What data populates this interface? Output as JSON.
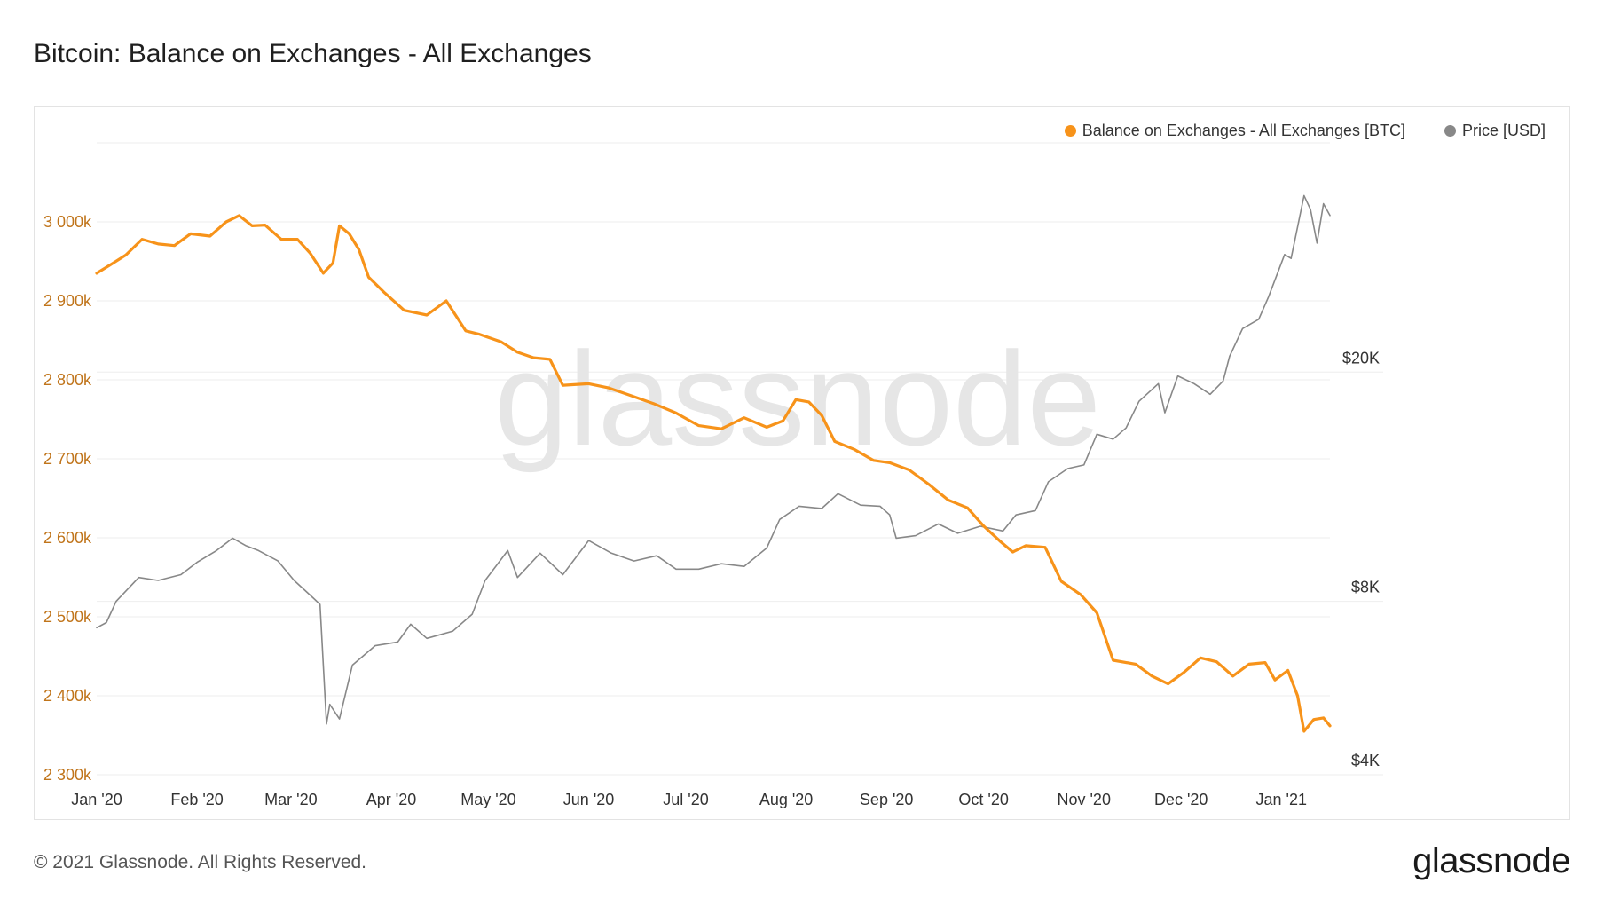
{
  "page": {
    "title": "Bitcoin: Balance on Exchanges - All Exchanges",
    "footer": "© 2021 Glassnode. All Rights Reserved.",
    "logo": "glassnode",
    "watermark": "glassnode"
  },
  "colors": {
    "balance": "#f7931a",
    "price": "#888888",
    "left_axis_text": "#c0741a",
    "grid": "#eeeeee"
  },
  "chart_data": {
    "type": "line",
    "title": "Bitcoin: Balance on Exchanges - All Exchanges",
    "legend_position": "top-right",
    "grid": true,
    "x_range": [
      "2020-01-01",
      "2021-01-16"
    ],
    "x_ticks": [
      {
        "date": "2020-01-01",
        "label": "Jan '20"
      },
      {
        "date": "2020-02-01",
        "label": "Feb '20"
      },
      {
        "date": "2020-03-01",
        "label": "Mar '20"
      },
      {
        "date": "2020-04-01",
        "label": "Apr '20"
      },
      {
        "date": "2020-05-01",
        "label": "May '20"
      },
      {
        "date": "2020-06-01",
        "label": "Jun '20"
      },
      {
        "date": "2020-07-01",
        "label": "Jul '20"
      },
      {
        "date": "2020-08-01",
        "label": "Aug '20"
      },
      {
        "date": "2020-09-01",
        "label": "Sep '20"
      },
      {
        "date": "2020-10-01",
        "label": "Oct '20"
      },
      {
        "date": "2020-11-01",
        "label": "Nov '20"
      },
      {
        "date": "2020-12-01",
        "label": "Dec '20"
      },
      {
        "date": "2021-01-01",
        "label": "Jan '21"
      }
    ],
    "y_left": {
      "scale": "linear",
      "range": [
        2300000,
        3100000
      ],
      "ticks": [
        {
          "value": 2300000,
          "label": "2 300k"
        },
        {
          "value": 2400000,
          "label": "2 400k"
        },
        {
          "value": 2500000,
          "label": "2 500k"
        },
        {
          "value": 2600000,
          "label": "2 600k"
        },
        {
          "value": 2700000,
          "label": "2 700k"
        },
        {
          "value": 2800000,
          "label": "2 800k"
        },
        {
          "value": 2900000,
          "label": "2 900k"
        },
        {
          "value": 3000000,
          "label": "3 000k"
        }
      ]
    },
    "y_right": {
      "scale": "log",
      "range": [
        4000,
        50000
      ],
      "ticks": [
        {
          "value": 4000,
          "label": "$4K"
        },
        {
          "value": 8000,
          "label": "$8K"
        },
        {
          "value": 20000,
          "label": "$20K"
        }
      ]
    },
    "series": [
      {
        "name": "Balance on Exchanges - All Exchanges [BTC]",
        "axis": "left",
        "points": [
          [
            "2020-01-01",
            2935000
          ],
          [
            "2020-01-05",
            2945000
          ],
          [
            "2020-01-10",
            2958000
          ],
          [
            "2020-01-15",
            2978000
          ],
          [
            "2020-01-20",
            2972000
          ],
          [
            "2020-01-25",
            2970000
          ],
          [
            "2020-01-30",
            2985000
          ],
          [
            "2020-02-05",
            2982000
          ],
          [
            "2020-02-10",
            3000000
          ],
          [
            "2020-02-14",
            3008000
          ],
          [
            "2020-02-18",
            2995000
          ],
          [
            "2020-02-22",
            2996000
          ],
          [
            "2020-02-27",
            2978000
          ],
          [
            "2020-03-03",
            2978000
          ],
          [
            "2020-03-07",
            2960000
          ],
          [
            "2020-03-11",
            2935000
          ],
          [
            "2020-03-14",
            2948000
          ],
          [
            "2020-03-16",
            2995000
          ],
          [
            "2020-03-19",
            2985000
          ],
          [
            "2020-03-22",
            2965000
          ],
          [
            "2020-03-25",
            2930000
          ],
          [
            "2020-03-30",
            2910000
          ],
          [
            "2020-04-05",
            2888000
          ],
          [
            "2020-04-12",
            2882000
          ],
          [
            "2020-04-18",
            2900000
          ],
          [
            "2020-04-24",
            2862000
          ],
          [
            "2020-04-28",
            2858000
          ],
          [
            "2020-05-05",
            2848000
          ],
          [
            "2020-05-10",
            2835000
          ],
          [
            "2020-05-15",
            2828000
          ],
          [
            "2020-05-20",
            2826000
          ],
          [
            "2020-05-24",
            2793000
          ],
          [
            "2020-06-01",
            2795000
          ],
          [
            "2020-06-07",
            2790000
          ],
          [
            "2020-06-14",
            2780000
          ],
          [
            "2020-06-21",
            2770000
          ],
          [
            "2020-06-28",
            2758000
          ],
          [
            "2020-07-05",
            2742000
          ],
          [
            "2020-07-12",
            2738000
          ],
          [
            "2020-07-19",
            2752000
          ],
          [
            "2020-07-26",
            2740000
          ],
          [
            "2020-07-31",
            2748000
          ],
          [
            "2020-08-04",
            2775000
          ],
          [
            "2020-08-08",
            2772000
          ],
          [
            "2020-08-12",
            2755000
          ],
          [
            "2020-08-16",
            2722000
          ],
          [
            "2020-08-22",
            2712000
          ],
          [
            "2020-08-28",
            2698000
          ],
          [
            "2020-09-02",
            2695000
          ],
          [
            "2020-09-08",
            2686000
          ],
          [
            "2020-09-14",
            2668000
          ],
          [
            "2020-09-20",
            2648000
          ],
          [
            "2020-09-26",
            2638000
          ],
          [
            "2020-10-01",
            2615000
          ],
          [
            "2020-10-06",
            2596000
          ],
          [
            "2020-10-10",
            2582000
          ],
          [
            "2020-10-14",
            2590000
          ],
          [
            "2020-10-20",
            2588000
          ],
          [
            "2020-10-25",
            2545000
          ],
          [
            "2020-10-31",
            2528000
          ],
          [
            "2020-11-05",
            2505000
          ],
          [
            "2020-11-10",
            2445000
          ],
          [
            "2020-11-17",
            2440000
          ],
          [
            "2020-11-22",
            2425000
          ],
          [
            "2020-11-27",
            2415000
          ],
          [
            "2020-12-02",
            2430000
          ],
          [
            "2020-12-07",
            2448000
          ],
          [
            "2020-12-12",
            2443000
          ],
          [
            "2020-12-17",
            2425000
          ],
          [
            "2020-12-22",
            2440000
          ],
          [
            "2020-12-27",
            2442000
          ],
          [
            "2020-12-30",
            2420000
          ],
          [
            "2021-01-03",
            2432000
          ],
          [
            "2021-01-06",
            2400000
          ],
          [
            "2021-01-08",
            2355000
          ],
          [
            "2021-01-11",
            2370000
          ],
          [
            "2021-01-14",
            2372000
          ],
          [
            "2021-01-16",
            2362000
          ]
        ]
      },
      {
        "name": "Price [USD]",
        "axis": "right",
        "points": [
          [
            "2020-01-01",
            7200
          ],
          [
            "2020-01-04",
            7350
          ],
          [
            "2020-01-07",
            8000
          ],
          [
            "2020-01-14",
            8800
          ],
          [
            "2020-01-20",
            8700
          ],
          [
            "2020-01-27",
            8900
          ],
          [
            "2020-02-01",
            9350
          ],
          [
            "2020-02-07",
            9800
          ],
          [
            "2020-02-12",
            10300
          ],
          [
            "2020-02-16",
            10000
          ],
          [
            "2020-02-20",
            9800
          ],
          [
            "2020-02-26",
            9400
          ],
          [
            "2020-03-02",
            8700
          ],
          [
            "2020-03-08",
            8100
          ],
          [
            "2020-03-10",
            7900
          ],
          [
            "2020-03-12",
            4900
          ],
          [
            "2020-03-13",
            5300
          ],
          [
            "2020-03-16",
            5000
          ],
          [
            "2020-03-20",
            6200
          ],
          [
            "2020-03-27",
            6700
          ],
          [
            "2020-04-03",
            6800
          ],
          [
            "2020-04-07",
            7300
          ],
          [
            "2020-04-12",
            6900
          ],
          [
            "2020-04-20",
            7100
          ],
          [
            "2020-04-26",
            7600
          ],
          [
            "2020-04-30",
            8700
          ],
          [
            "2020-05-07",
            9800
          ],
          [
            "2020-05-10",
            8800
          ],
          [
            "2020-05-17",
            9700
          ],
          [
            "2020-05-24",
            8900
          ],
          [
            "2020-06-01",
            10200
          ],
          [
            "2020-06-08",
            9700
          ],
          [
            "2020-06-15",
            9400
          ],
          [
            "2020-06-22",
            9600
          ],
          [
            "2020-06-28",
            9100
          ],
          [
            "2020-07-05",
            9100
          ],
          [
            "2020-07-12",
            9300
          ],
          [
            "2020-07-19",
            9200
          ],
          [
            "2020-07-26",
            9900
          ],
          [
            "2020-07-30",
            11100
          ],
          [
            "2020-08-05",
            11700
          ],
          [
            "2020-08-12",
            11600
          ],
          [
            "2020-08-17",
            12300
          ],
          [
            "2020-08-24",
            11750
          ],
          [
            "2020-08-30",
            11700
          ],
          [
            "2020-09-02",
            11300
          ],
          [
            "2020-09-04",
            10300
          ],
          [
            "2020-09-10",
            10400
          ],
          [
            "2020-09-17",
            10900
          ],
          [
            "2020-09-23",
            10500
          ],
          [
            "2020-09-30",
            10800
          ],
          [
            "2020-10-07",
            10600
          ],
          [
            "2020-10-11",
            11300
          ],
          [
            "2020-10-17",
            11500
          ],
          [
            "2020-10-21",
            12900
          ],
          [
            "2020-10-27",
            13600
          ],
          [
            "2020-11-01",
            13800
          ],
          [
            "2020-11-05",
            15600
          ],
          [
            "2020-11-10",
            15300
          ],
          [
            "2020-11-14",
            16000
          ],
          [
            "2020-11-18",
            17800
          ],
          [
            "2020-11-24",
            19100
          ],
          [
            "2020-11-26",
            17000
          ],
          [
            "2020-11-30",
            19700
          ],
          [
            "2020-12-05",
            19100
          ],
          [
            "2020-12-10",
            18300
          ],
          [
            "2020-12-14",
            19300
          ],
          [
            "2020-12-16",
            21300
          ],
          [
            "2020-12-20",
            23800
          ],
          [
            "2020-12-25",
            24700
          ],
          [
            "2020-12-28",
            27000
          ],
          [
            "2021-01-02",
            32000
          ],
          [
            "2021-01-04",
            31500
          ],
          [
            "2021-01-08",
            40500
          ],
          [
            "2021-01-10",
            38300
          ],
          [
            "2021-01-12",
            33500
          ],
          [
            "2021-01-14",
            39200
          ],
          [
            "2021-01-16",
            37400
          ]
        ]
      }
    ]
  }
}
